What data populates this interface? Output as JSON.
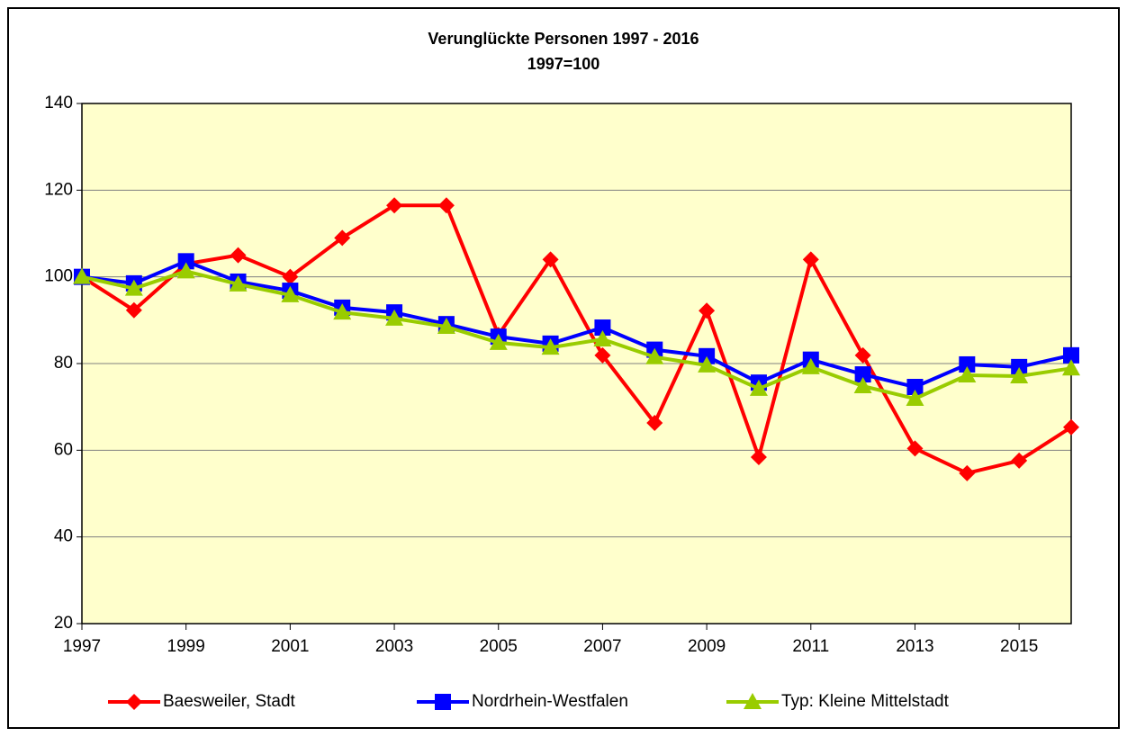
{
  "chart_data": {
    "type": "line",
    "title": "Verunglückte Personen 1997 - 2016",
    "subtitle": "1997=100",
    "x": [
      1997,
      1998,
      1999,
      2000,
      2001,
      2002,
      2003,
      2004,
      2005,
      2006,
      2007,
      2008,
      2009,
      2010,
      2011,
      2012,
      2013,
      2014,
      2015,
      2016
    ],
    "xlim": [
      1997,
      2016
    ],
    "xticks": [
      1997,
      1999,
      2001,
      2003,
      2005,
      2007,
      2009,
      2011,
      2013,
      2015
    ],
    "ylim": [
      20,
      140
    ],
    "yticks": [
      20,
      40,
      60,
      80,
      100,
      120,
      140
    ],
    "grid": true,
    "legend": "bottom",
    "series": [
      {
        "name": "Baesweiler, Stadt",
        "color": "#ff0000",
        "marker": "diamond",
        "values": [
          100,
          92.3,
          103,
          105,
          100,
          109,
          116.5,
          116.5,
          86.6,
          104,
          81.9,
          66.3,
          92.2,
          58.4,
          104,
          81.9,
          60.4,
          54.7,
          57.6,
          65.3
        ]
      },
      {
        "name": "Nordrhein-Westfalen",
        "color": "#0000ff",
        "marker": "square",
        "values": [
          100,
          98.5,
          103.6,
          98.9,
          96.8,
          92.9,
          91.8,
          89.1,
          86.2,
          84.6,
          88.3,
          83.2,
          81.7,
          75.6,
          80.9,
          77.5,
          74.6,
          79.8,
          79.2,
          81.9
        ]
      },
      {
        "name": "Typ: Kleine Mittelstadt",
        "color": "#99cc00",
        "marker": "triangle",
        "values": [
          100,
          97.3,
          101.3,
          98.3,
          95.8,
          91.8,
          90.4,
          88.5,
          84.8,
          83.7,
          85.6,
          81.5,
          79.6,
          74.2,
          79.2,
          74.8,
          71.9,
          77.3,
          77.1,
          78.9
        ]
      }
    ]
  }
}
